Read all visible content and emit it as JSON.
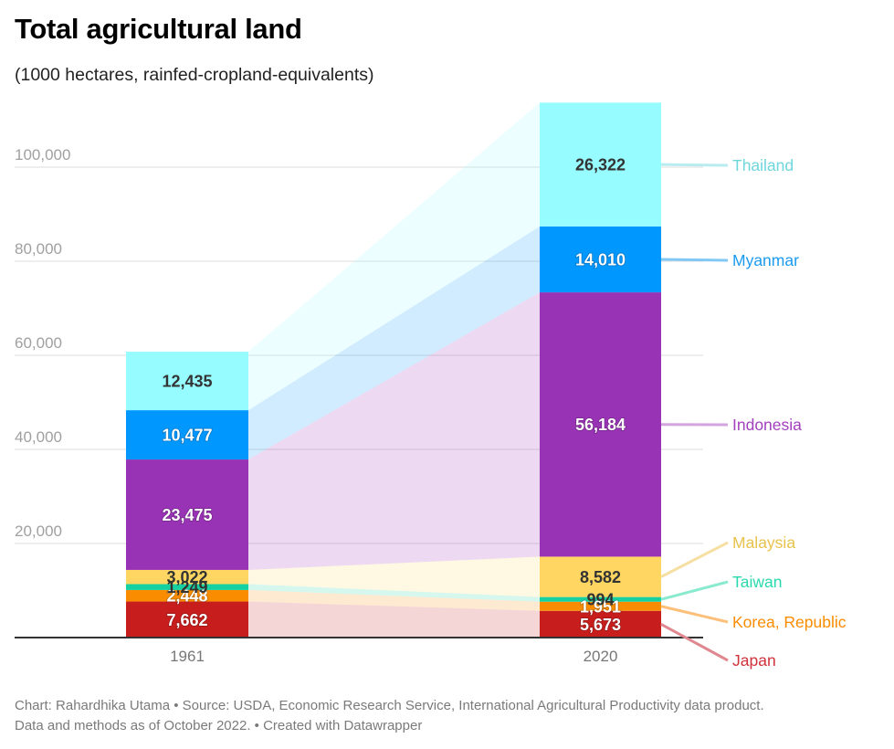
{
  "header": {
    "title": "Total agricultural land",
    "subtitle": "(1000 hectares, rainfed-cropland-equivalents)"
  },
  "footer": {
    "line1": "Chart: Rahardhika Utama • Source: USDA, Economic Research Service, International Agricultural Productivity data product.",
    "line2": "Data and methods as of October 2022. • Created with Datawrapper"
  },
  "chart_data": {
    "type": "bar",
    "stacked": true,
    "connected_areas": true,
    "title": "Total agricultural land",
    "subtitle": "(1000 hectares, rainfed-cropland-equivalents)",
    "xlabel": "",
    "ylabel": "",
    "categories": [
      "1961",
      "2020"
    ],
    "ylim": [
      0,
      113716
    ],
    "yticks": [
      20000,
      40000,
      60000,
      80000,
      100000
    ],
    "ytick_labels": [
      "20,000",
      "40,000",
      "60,000",
      "80,000",
      "100,000"
    ],
    "grid": true,
    "legend": "direct-labels-right",
    "series": [
      {
        "name": "Japan",
        "values": [
          7662,
          5673
        ],
        "labels": [
          "7,662",
          "5,673"
        ],
        "color": "#c71e1d",
        "label_color": "#d0323a",
        "line_color": "#e08890",
        "value_text_color": "#ffffff"
      },
      {
        "name": "Korea, Republic",
        "values": [
          2448,
          1951
        ],
        "labels": [
          "2,448",
          "1,951"
        ],
        "color": "#fa8c00",
        "label_color": "#fa8c00",
        "line_color": "#fcc07a",
        "value_text_color": "#ffffff"
      },
      {
        "name": "Taiwan",
        "values": [
          1249,
          994
        ],
        "labels": [
          "1,249",
          "994"
        ],
        "color": "#15d1a2",
        "label_color": "#2ad9ad",
        "line_color": "#8aeacf",
        "value_text_color": "#333333"
      },
      {
        "name": "Malaysia",
        "values": [
          3022,
          8582
        ],
        "labels": [
          "3,022",
          "8,582"
        ],
        "color": "#ffd662",
        "label_color": "#e8c24a",
        "line_color": "#f5dfa2",
        "value_text_color": "#333333"
      },
      {
        "name": "Indonesia",
        "values": [
          23475,
          56184
        ],
        "labels": [
          "23,475",
          "56,184"
        ],
        "color": "#9933b5",
        "label_color": "#a23fbd",
        "line_color": "#d4a4e0",
        "value_text_color": "#ffffff"
      },
      {
        "name": "Myanmar",
        "values": [
          10477,
          14010
        ],
        "labels": [
          "10,477",
          "14,010"
        ],
        "color": "#0097ff",
        "label_color": "#1a9bef",
        "line_color": "#82c8f5",
        "value_text_color": "#ffffff"
      },
      {
        "name": "Thailand",
        "values": [
          12435,
          26322
        ],
        "labels": [
          "12,435",
          "26,322"
        ],
        "color": "#96fcff",
        "label_color": "#6fd6dc",
        "line_color": "#b8ecef",
        "value_text_color": "#333333"
      }
    ]
  }
}
